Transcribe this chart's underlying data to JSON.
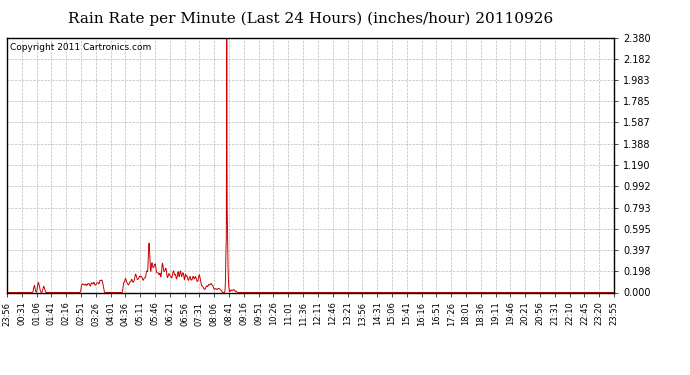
{
  "title": "Rain Rate per Minute (Last 24 Hours) (inches/hour) 20110926",
  "copyright": "Copyright 2011 Cartronics.com",
  "yticks": [
    0.0,
    0.198,
    0.397,
    0.595,
    0.793,
    0.992,
    1.19,
    1.388,
    1.587,
    1.785,
    1.983,
    2.182,
    2.38
  ],
  "ymax": 2.38,
  "ymin": 0.0,
  "line_color": "#cc0000",
  "background_color": "#ffffff",
  "grid_color": "#bbbbbb",
  "xtick_labels": [
    "23:56",
    "00:31",
    "01:06",
    "01:41",
    "02:16",
    "02:51",
    "03:26",
    "04:01",
    "04:36",
    "05:11",
    "05:46",
    "06:21",
    "06:56",
    "07:31",
    "08:06",
    "08:41",
    "09:16",
    "09:51",
    "10:26",
    "11:01",
    "11:36",
    "12:11",
    "12:46",
    "13:21",
    "13:56",
    "14:31",
    "15:06",
    "15:41",
    "16:16",
    "16:51",
    "17:26",
    "18:01",
    "18:36",
    "19:11",
    "19:46",
    "20:21",
    "20:56",
    "21:31",
    "22:10",
    "22:45",
    "23:20",
    "23:55"
  ],
  "title_fontsize": 11,
  "copyright_fontsize": 6.5,
  "tick_fontsize": 6,
  "ytick_fontsize": 7,
  "spike_index": 521,
  "spike_value": 2.38,
  "secondary_peak_index": 336,
  "secondary_peak_value": 0.595
}
